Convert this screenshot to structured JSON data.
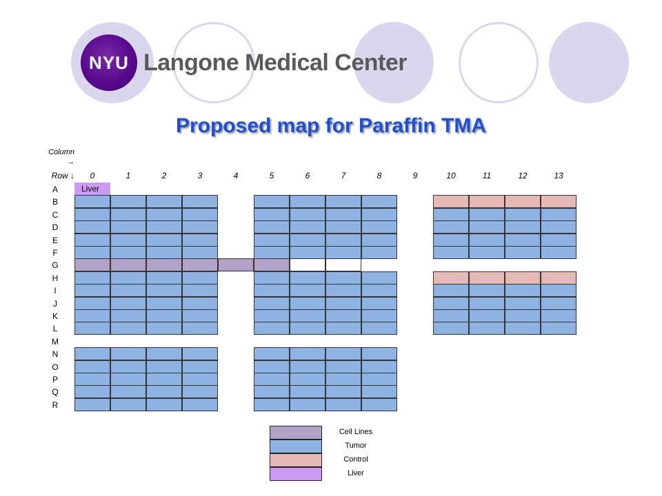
{
  "logo": {
    "badge_text": "NYU",
    "name": "Langone Medical Center",
    "brand_color": "#57068c"
  },
  "title": "Proposed map for Paraffin TMA",
  "axes": {
    "column_label": "Column",
    "column_arrow": "→",
    "row_label": "Row ↓"
  },
  "columns": [
    "0",
    "1",
    "2",
    "3",
    "4",
    "5",
    "6",
    "7",
    "8",
    "9",
    "10",
    "11",
    "12",
    "13"
  ],
  "rows": [
    "A",
    "B",
    "C",
    "D",
    "E",
    "F",
    "G",
    "H",
    "I",
    "J",
    "K",
    "L",
    "M",
    "N",
    "O",
    "P",
    "Q",
    "R"
  ],
  "cell_text": {
    "liver": "Liver"
  },
  "colors": {
    "cell_lines": "#b2a1c7",
    "tumor": "#8eb3e2",
    "control": "#e7b9b6",
    "liver": "#cc9cf4"
  },
  "grid": {
    "A": [
      "liver"
    ],
    "B": [
      "tumor",
      "tumor",
      "tumor",
      "tumor",
      null,
      "tumor",
      "tumor",
      "tumor",
      "tumor",
      null,
      "control",
      "control",
      "control",
      "control"
    ],
    "C": [
      "tumor",
      "tumor",
      "tumor",
      "tumor",
      null,
      "tumor",
      "tumor",
      "tumor",
      "tumor",
      null,
      "tumor",
      "tumor",
      "tumor",
      "tumor"
    ],
    "D": [
      "tumor",
      "tumor",
      "tumor",
      "tumor",
      null,
      "tumor",
      "tumor",
      "tumor",
      "tumor",
      null,
      "tumor",
      "tumor",
      "tumor",
      "tumor"
    ],
    "E": [
      "tumor",
      "tumor",
      "tumor",
      "tumor",
      null,
      "tumor",
      "tumor",
      "tumor",
      "tumor",
      null,
      "tumor",
      "tumor",
      "tumor",
      "tumor"
    ],
    "F": [
      "tumor",
      "tumor",
      "tumor",
      "tumor",
      null,
      "tumor",
      "tumor",
      "tumor",
      "tumor",
      null,
      "tumor",
      "tumor",
      "tumor",
      "tumor"
    ],
    "G": [
      "cell_lines",
      "cell_lines",
      "cell_lines",
      "cell_lines",
      "cell_lines",
      "cell_lines",
      "empty",
      "empty"
    ],
    "H": [
      "tumor",
      "tumor",
      "tumor",
      "tumor",
      null,
      "tumor",
      "tumor",
      "tumor",
      "tumor",
      null,
      "control",
      "control",
      "control",
      "control"
    ],
    "I": [
      "tumor",
      "tumor",
      "tumor",
      "tumor",
      null,
      "tumor",
      "tumor",
      "tumor",
      "tumor",
      null,
      "tumor",
      "tumor",
      "tumor",
      "tumor"
    ],
    "J": [
      "tumor",
      "tumor",
      "tumor",
      "tumor",
      null,
      "tumor",
      "tumor",
      "tumor",
      "tumor",
      null,
      "tumor",
      "tumor",
      "tumor",
      "tumor"
    ],
    "K": [
      "tumor",
      "tumor",
      "tumor",
      "tumor",
      null,
      "tumor",
      "tumor",
      "tumor",
      "tumor",
      null,
      "tumor",
      "tumor",
      "tumor",
      "tumor"
    ],
    "L": [
      "tumor",
      "tumor",
      "tumor",
      "tumor",
      null,
      "tumor",
      "tumor",
      "tumor",
      "tumor",
      null,
      "tumor",
      "tumor",
      "tumor",
      "tumor"
    ],
    "M": [],
    "N": [
      "tumor",
      "tumor",
      "tumor",
      "tumor",
      null,
      "tumor",
      "tumor",
      "tumor",
      "tumor"
    ],
    "O": [
      "tumor",
      "tumor",
      "tumor",
      "tumor",
      null,
      "tumor",
      "tumor",
      "tumor",
      "tumor"
    ],
    "P": [
      "tumor",
      "tumor",
      "tumor",
      "tumor",
      null,
      "tumor",
      "tumor",
      "tumor",
      "tumor"
    ],
    "Q": [
      "tumor",
      "tumor",
      "tumor",
      "tumor",
      null,
      "tumor",
      "tumor",
      "tumor",
      "tumor"
    ],
    "R": [
      "tumor",
      "tumor",
      "tumor",
      "tumor",
      null,
      "tumor",
      "tumor",
      "tumor",
      "tumor"
    ]
  },
  "legend": [
    {
      "type": "cell_lines",
      "label": "Cell Lines"
    },
    {
      "type": "tumor",
      "label": "Tumor"
    },
    {
      "type": "control",
      "label": "Control"
    },
    {
      "type": "liver",
      "label": "Liver"
    }
  ]
}
